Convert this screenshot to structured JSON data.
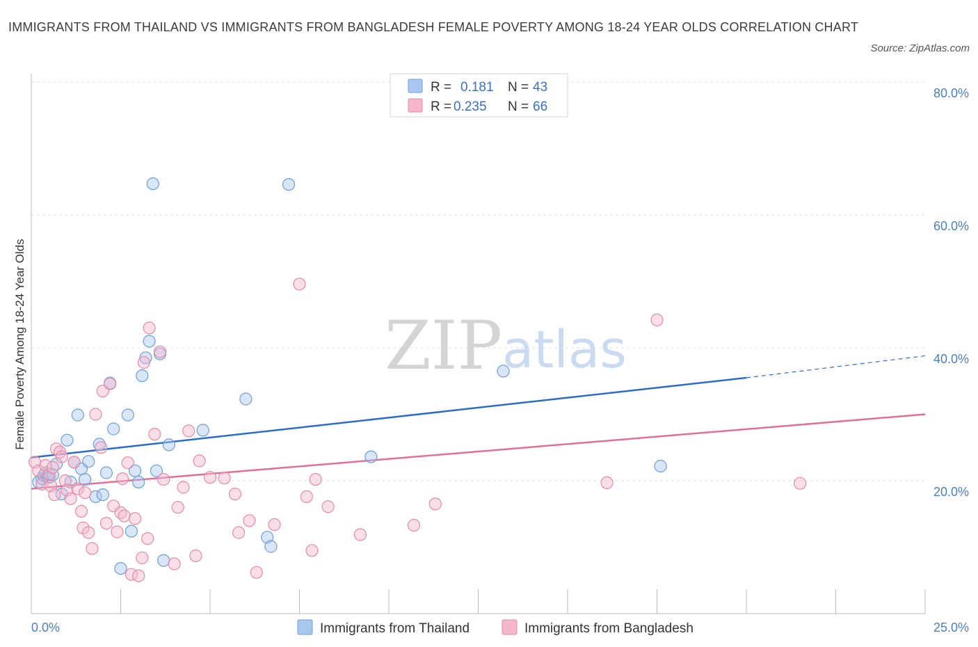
{
  "header": {
    "title": "IMMIGRANTS FROM THAILAND VS IMMIGRANTS FROM BANGLADESH FEMALE POVERTY AMONG 18-24 YEAR OLDS CORRELATION CHART",
    "source": "Source: ZipAtlas.com"
  },
  "watermark": {
    "zip": "ZIP",
    "atlas": "atlas"
  },
  "legend": {
    "rows": [
      {
        "r_label": "R =",
        "r_value": "0.181",
        "n_label": "N =",
        "n_value": "43",
        "color": "#a9c8f0"
      },
      {
        "r_label": "R =",
        "r_value": "0.235",
        "n_label": "N =",
        "n_value": "66",
        "color": "#f5b7cb"
      }
    ]
  },
  "chart_data": {
    "type": "scatter",
    "xlabel": "",
    "ylabel": "Female Poverty Among 18-24 Year Olds",
    "xlim": [
      0,
      25
    ],
    "ylim": [
      0,
      80
    ],
    "x_tick_labels": [
      "0.0%",
      "25.0%"
    ],
    "y_ticks": [
      20,
      40,
      60,
      80
    ],
    "y_tick_labels": [
      "20.0%",
      "40.0%",
      "60.0%",
      "80.0%"
    ],
    "grid": true,
    "series": [
      {
        "name": "Immigrants from Thailand",
        "color": "#a9c8f0",
        "stroke": "#6a9ed8",
        "trend_color": "#2b6cc9",
        "trend": {
          "x0": 0,
          "y0": 23.5,
          "x1": 20,
          "y1": 35.5,
          "dashed_to_x": 25,
          "dashed_to_y": 38.8
        },
        "points": [
          [
            0.2,
            19.8
          ],
          [
            0.3,
            20.3
          ],
          [
            0.35,
            20.8
          ],
          [
            0.4,
            21.2
          ],
          [
            0.45,
            20.6
          ],
          [
            0.5,
            20.5
          ],
          [
            0.6,
            20.9
          ],
          [
            0.7,
            22.5
          ],
          [
            0.85,
            18.0
          ],
          [
            1.0,
            26.1
          ],
          [
            1.1,
            19.8
          ],
          [
            1.2,
            22.8
          ],
          [
            1.3,
            29.9
          ],
          [
            1.4,
            21.8
          ],
          [
            1.5,
            20.2
          ],
          [
            1.6,
            22.9
          ],
          [
            1.8,
            17.6
          ],
          [
            1.9,
            25.5
          ],
          [
            2.0,
            17.9
          ],
          [
            2.1,
            21.2
          ],
          [
            2.2,
            34.7
          ],
          [
            2.3,
            27.8
          ],
          [
            2.5,
            6.8
          ],
          [
            2.7,
            29.9
          ],
          [
            2.8,
            12.4
          ],
          [
            2.9,
            21.5
          ],
          [
            3.0,
            19.8
          ],
          [
            3.1,
            35.8
          ],
          [
            3.2,
            38.5
          ],
          [
            3.3,
            41.0
          ],
          [
            3.4,
            64.7
          ],
          [
            3.5,
            21.5
          ],
          [
            3.6,
            39.1
          ],
          [
            3.7,
            8.0
          ],
          [
            3.85,
            25.4
          ],
          [
            4.8,
            27.6
          ],
          [
            6.0,
            32.3
          ],
          [
            6.6,
            11.5
          ],
          [
            6.7,
            10.1
          ],
          [
            7.2,
            64.6
          ],
          [
            9.5,
            23.6
          ],
          [
            13.2,
            36.5
          ],
          [
            17.6,
            22.2
          ]
        ]
      },
      {
        "name": "Immigrants from Bangladesh",
        "color": "#f5b7cb",
        "stroke": "#e58aa6",
        "trend_color": "#e0709a",
        "trend": {
          "x0": 0,
          "y0": 18.8,
          "x1": 25,
          "y1": 30.0
        },
        "points": [
          [
            0.1,
            22.8
          ],
          [
            0.2,
            21.5
          ],
          [
            0.3,
            19.5
          ],
          [
            0.4,
            22.3
          ],
          [
            0.5,
            21.0
          ],
          [
            0.55,
            19.2
          ],
          [
            0.6,
            22.0
          ],
          [
            0.65,
            17.9
          ],
          [
            0.7,
            24.8
          ],
          [
            0.8,
            24.3
          ],
          [
            0.85,
            23.6
          ],
          [
            0.95,
            20.0
          ],
          [
            1.0,
            18.6
          ],
          [
            1.1,
            17.3
          ],
          [
            1.2,
            22.8
          ],
          [
            1.3,
            18.8
          ],
          [
            1.4,
            15.4
          ],
          [
            1.45,
            12.9
          ],
          [
            1.5,
            18.2
          ],
          [
            1.6,
            12.2
          ],
          [
            1.7,
            9.8
          ],
          [
            1.8,
            30.0
          ],
          [
            1.95,
            25.0
          ],
          [
            2.0,
            33.5
          ],
          [
            2.1,
            13.6
          ],
          [
            2.2,
            34.6
          ],
          [
            2.3,
            16.2
          ],
          [
            2.4,
            12.3
          ],
          [
            2.5,
            15.2
          ],
          [
            2.55,
            20.3
          ],
          [
            2.6,
            14.7
          ],
          [
            2.7,
            22.7
          ],
          [
            2.8,
            5.9
          ],
          [
            2.9,
            14.3
          ],
          [
            3.0,
            5.7
          ],
          [
            3.1,
            8.4
          ],
          [
            3.15,
            37.8
          ],
          [
            3.25,
            11.3
          ],
          [
            3.3,
            43.0
          ],
          [
            3.45,
            27.0
          ],
          [
            3.6,
            39.4
          ],
          [
            3.7,
            20.2
          ],
          [
            4.0,
            7.5
          ],
          [
            4.1,
            16.0
          ],
          [
            4.25,
            19.0
          ],
          [
            4.4,
            27.5
          ],
          [
            4.6,
            8.7
          ],
          [
            4.7,
            23.0
          ],
          [
            5.0,
            20.5
          ],
          [
            5.4,
            20.4
          ],
          [
            5.7,
            18.0
          ],
          [
            5.8,
            12.2
          ],
          [
            6.1,
            14.0
          ],
          [
            6.3,
            6.2
          ],
          [
            6.8,
            13.4
          ],
          [
            7.5,
            49.6
          ],
          [
            7.7,
            17.6
          ],
          [
            7.85,
            9.5
          ],
          [
            7.95,
            20.2
          ],
          [
            8.3,
            16.1
          ],
          [
            9.2,
            11.9
          ],
          [
            10.7,
            13.3
          ],
          [
            11.3,
            16.5
          ],
          [
            16.1,
            19.7
          ],
          [
            17.5,
            44.2
          ],
          [
            21.5,
            19.6
          ]
        ]
      }
    ]
  }
}
